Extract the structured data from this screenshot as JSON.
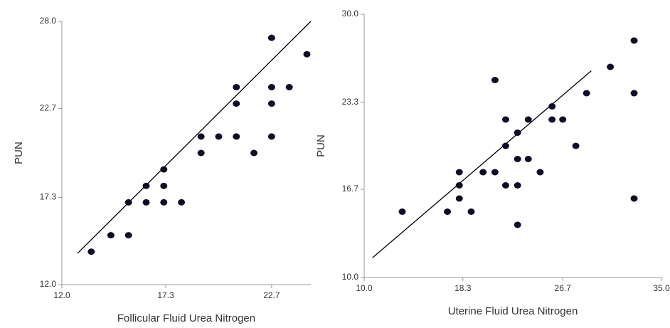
{
  "chart_data": [
    {
      "type": "scatter",
      "x_label": "Follicular Fluid Urea Nitrogen",
      "y_label": "PUN",
      "x": [
        13.5,
        14.5,
        15.4,
        15.4,
        16.3,
        16.3,
        17.2,
        17.2,
        17.2,
        18.1,
        19.1,
        19.1,
        20.0,
        20.9,
        20.9,
        20.9,
        21.8,
        22.7,
        22.7,
        22.7,
        22.7,
        23.6,
        24.5
      ],
      "y": [
        14.0,
        15.0,
        15.0,
        17.0,
        17.0,
        18.0,
        17.0,
        18.0,
        19.0,
        17.0,
        20.0,
        21.0,
        21.0,
        21.0,
        23.0,
        24.0,
        20.0,
        21.0,
        23.0,
        24.0,
        27.0,
        24.0,
        26.0
      ],
      "color": "#0d0d26",
      "line": {
        "x": [
          12.8,
          24.7
        ],
        "y": [
          13.9,
          28.0
        ]
      },
      "xlim": [
        12.0,
        24.7
      ],
      "ylim": [
        12.0,
        28.0
      ],
      "xticks": [
        {
          "value": 12.0,
          "label": "12.0"
        },
        {
          "value": 17.3,
          "label": "17.3"
        },
        {
          "value": 22.7,
          "label": "22.7"
        }
      ],
      "yticks": [
        {
          "value": 12.0,
          "label": "12.0"
        },
        {
          "value": 17.3,
          "label": "17.3"
        },
        {
          "value": 22.7,
          "label": "22.7"
        },
        {
          "value": 28.0,
          "label": "28.0"
        }
      ]
    },
    {
      "type": "scatter",
      "x_label": "Uterine Fluid Urea Nitrogen",
      "y_label": "PUN",
      "x": [
        13.2,
        17.0,
        18.0,
        18.0,
        18.0,
        19.0,
        20.0,
        21.0,
        21.0,
        21.9,
        21.9,
        21.9,
        22.9,
        22.9,
        22.9,
        22.9,
        23.8,
        23.8,
        24.8,
        25.8,
        25.8,
        26.7,
        27.8,
        28.7,
        30.7,
        32.7,
        32.7,
        32.7
      ],
      "y": [
        15.0,
        15.0,
        16.0,
        17.0,
        18.0,
        15.0,
        18.0,
        25.0,
        18.0,
        20.0,
        22.0,
        17.0,
        21.0,
        19.0,
        17.0,
        14.0,
        22.0,
        19.0,
        18.0,
        23.0,
        22.0,
        22.0,
        20.0,
        24.0,
        26.0,
        28.0,
        24.0,
        16.0
      ],
      "color": "#0d0d26",
      "line": {
        "x": [
          10.7,
          29.1
        ],
        "y": [
          11.5,
          25.7
        ]
      },
      "xlim": [
        10.0,
        35.0
      ],
      "ylim": [
        10.0,
        30.0
      ],
      "xticks": [
        {
          "value": 10.0,
          "label": "10.0"
        },
        {
          "value": 18.3,
          "label": "18.3"
        },
        {
          "value": 26.7,
          "label": "26.7"
        },
        {
          "value": 35.0,
          "label": "35.0"
        }
      ],
      "yticks": [
        {
          "value": 10.0,
          "label": "10.0"
        },
        {
          "value": 16.7,
          "label": "16.7"
        },
        {
          "value": 23.3,
          "label": "23.3"
        },
        {
          "value": 30.0,
          "label": "30.0"
        }
      ]
    }
  ]
}
